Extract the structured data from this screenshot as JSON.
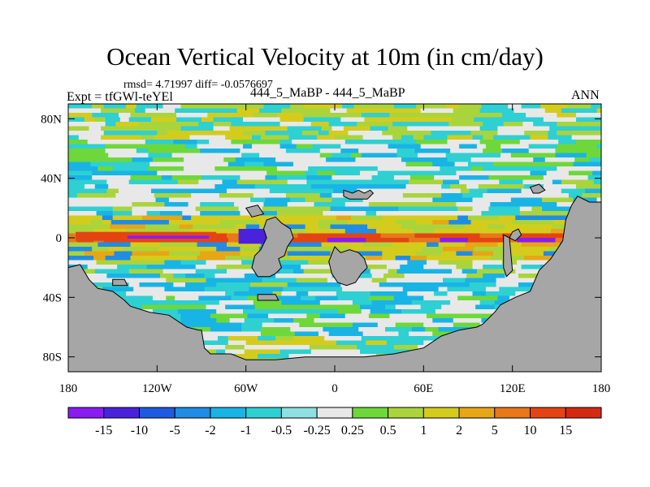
{
  "chart_data": {
    "type": "heatmap",
    "title": "Ocean Vertical Velocity at 10m (in cm/day)",
    "stats": "rmsd= 4.71997 diff= -0.0576697",
    "left_label": "Expt = tfGWl-teYEl",
    "center_label": "444_5_MaBP - 444_5_MaBP",
    "right_label": "ANN",
    "xlim": [
      -180,
      180
    ],
    "ylim": [
      -90,
      90
    ],
    "x_ticks": [
      {
        "value": -180,
        "label": "180"
      },
      {
        "value": -120,
        "label": "120W"
      },
      {
        "value": -60,
        "label": "60W"
      },
      {
        "value": 0,
        "label": "0"
      },
      {
        "value": 60,
        "label": "60E"
      },
      {
        "value": 120,
        "label": "120E"
      },
      {
        "value": 180,
        "label": "180"
      }
    ],
    "y_ticks": [
      {
        "value": 80,
        "label": "80N"
      },
      {
        "value": 40,
        "label": "40N"
      },
      {
        "value": 0,
        "label": "0"
      },
      {
        "value": -40,
        "label": "40S"
      },
      {
        "value": -80,
        "label": "80S"
      }
    ],
    "colorbar": {
      "levels": [
        "-15",
        "-10",
        "-5",
        "-2",
        "-1",
        "-0.5",
        "-0.25",
        "0.25",
        "0.5",
        "1",
        "2",
        "5",
        "10",
        "15"
      ],
      "colors": [
        "#8a1cf0",
        "#4a22dc",
        "#1e5ae0",
        "#1f8ce6",
        "#18b4e6",
        "#2ed0d2",
        "#8fe0e0",
        "#e8e8e8",
        "#6ed83a",
        "#aad43c",
        "#d4cc1c",
        "#e6a616",
        "#e8781a",
        "#e44414",
        "#d42a12"
      ]
    },
    "land_color": "#a6a6a6"
  }
}
